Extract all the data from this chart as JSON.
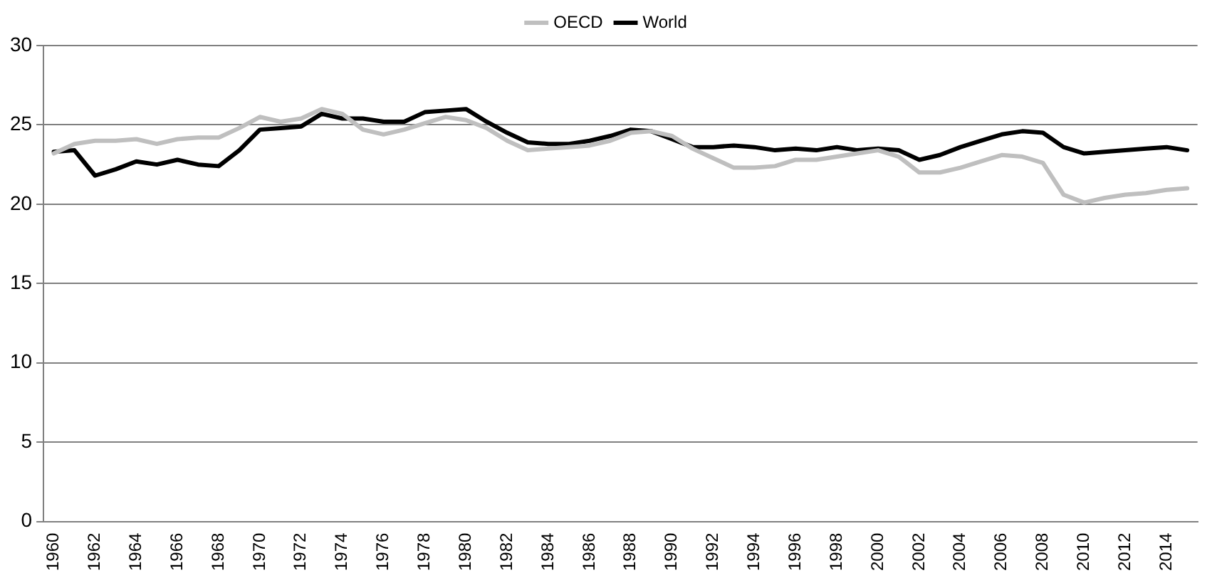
{
  "chart_data": {
    "type": "line",
    "categories": [
      "1960",
      null,
      "1962",
      null,
      "1964",
      null,
      "1966",
      null,
      "1968",
      null,
      "1970",
      null,
      "1972",
      null,
      "1974",
      null,
      "1976",
      null,
      "1978",
      null,
      "1980",
      null,
      "1982",
      null,
      "1984",
      null,
      "1986",
      null,
      "1988",
      null,
      "1990",
      null,
      "1992",
      null,
      "1994",
      null,
      "1996",
      null,
      "1998",
      null,
      "2000",
      null,
      "2002",
      null,
      "2004",
      null,
      "2006",
      null,
      "2008",
      null,
      "2010",
      null,
      "2012",
      null,
      "2014",
      null
    ],
    "series": [
      {
        "name": "OECD",
        "color": "#bfbfbf",
        "values": [
          23.2,
          23.8,
          24.0,
          24.0,
          24.1,
          23.8,
          24.1,
          24.2,
          24.2,
          24.8,
          25.5,
          25.2,
          25.4,
          26.0,
          25.7,
          24.7,
          24.4,
          24.7,
          25.1,
          25.5,
          25.3,
          24.8,
          24.0,
          23.4,
          23.5,
          23.6,
          23.7,
          24.0,
          24.5,
          24.6,
          24.3,
          23.5,
          22.9,
          22.3,
          22.3,
          22.4,
          22.8,
          22.8,
          23.0,
          23.2,
          23.4,
          23.0,
          22.0,
          22.0,
          22.3,
          22.7,
          23.1,
          23.0,
          22.6,
          20.6,
          20.1,
          20.4,
          20.6,
          20.7,
          20.9,
          21.0
        ]
      },
      {
        "name": "World",
        "color": "#000000",
        "values": [
          23.3,
          23.4,
          21.8,
          22.2,
          22.7,
          22.5,
          22.8,
          22.5,
          22.4,
          23.4,
          24.7,
          24.8,
          24.9,
          25.7,
          25.4,
          25.4,
          25.2,
          25.2,
          25.8,
          25.9,
          26.0,
          25.2,
          24.5,
          23.9,
          23.8,
          23.8,
          24.0,
          24.3,
          24.7,
          24.6,
          24.1,
          23.6,
          23.6,
          23.7,
          23.6,
          23.4,
          23.5,
          23.4,
          23.6,
          23.4,
          23.5,
          23.4,
          22.8,
          23.1,
          23.6,
          24.0,
          24.4,
          24.6,
          24.5,
          23.6,
          23.2,
          23.3,
          23.4,
          23.5,
          23.6,
          23.4
        ]
      }
    ],
    "ylim": [
      0,
      30
    ],
    "yticks": [
      0,
      5,
      10,
      15,
      20,
      25,
      30
    ],
    "grid": "y",
    "legend": "top",
    "marker": "none",
    "line_style": "solid"
  }
}
